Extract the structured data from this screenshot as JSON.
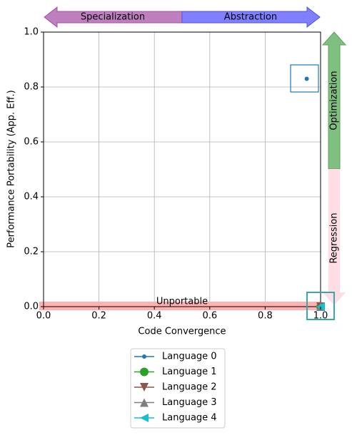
{
  "chart_data": {
    "type": "scatter",
    "xlabel": "Code Convergence",
    "ylabel": "Performance Portability (App. Eff.)",
    "annotations": {
      "left": "Specialization",
      "right": "Abstraction",
      "up": "Optimization",
      "down": "Regression",
      "bottom": "Unportable"
    },
    "xlim": [
      0,
      1.0
    ],
    "ylim": [
      0,
      1.0
    ],
    "xticks": [
      {
        "value": 0,
        "label": "0.0"
      },
      {
        "value": 0.2,
        "label": "0.2"
      },
      {
        "value": 0.4,
        "label": "0.4"
      },
      {
        "value": 0.6,
        "label": "0.6"
      },
      {
        "value": 0.8,
        "label": "0.8"
      },
      {
        "value": 1.0,
        "label": "1.0"
      }
    ],
    "yticks": [
      {
        "value": 0,
        "label": "0.0"
      },
      {
        "value": 0.2,
        "label": "0.2"
      },
      {
        "value": 0.4,
        "label": "0.4"
      },
      {
        "value": 0.6,
        "label": "0.6"
      },
      {
        "value": 0.8,
        "label": "0.8"
      },
      {
        "value": 1.0,
        "label": "1.0"
      }
    ],
    "grid": true,
    "legend": "lower center",
    "series": [
      {
        "name": "Language 0",
        "color": "#1f77b4",
        "marker": "o",
        "size": 3,
        "x": [
          0.95
        ],
        "values": [
          0.83
        ]
      },
      {
        "name": "Language 1",
        "color": "#2ca02c",
        "marker": "o",
        "size": 6,
        "x": [
          1.0
        ],
        "values": [
          0.0
        ]
      },
      {
        "name": "Language 2",
        "color": "#8c564b",
        "marker": "v",
        "size": 6,
        "x": [
          1.0
        ],
        "values": [
          0.0
        ]
      },
      {
        "name": "Language 3",
        "color": "#7f7f7f",
        "marker": "^",
        "size": 6,
        "x": [
          1.0
        ],
        "values": [
          0.0
        ]
      },
      {
        "name": "Language 4",
        "color": "#17becf",
        "marker": "<",
        "size": 6,
        "x": [
          1.0
        ],
        "values": [
          0.0
        ]
      }
    ]
  }
}
